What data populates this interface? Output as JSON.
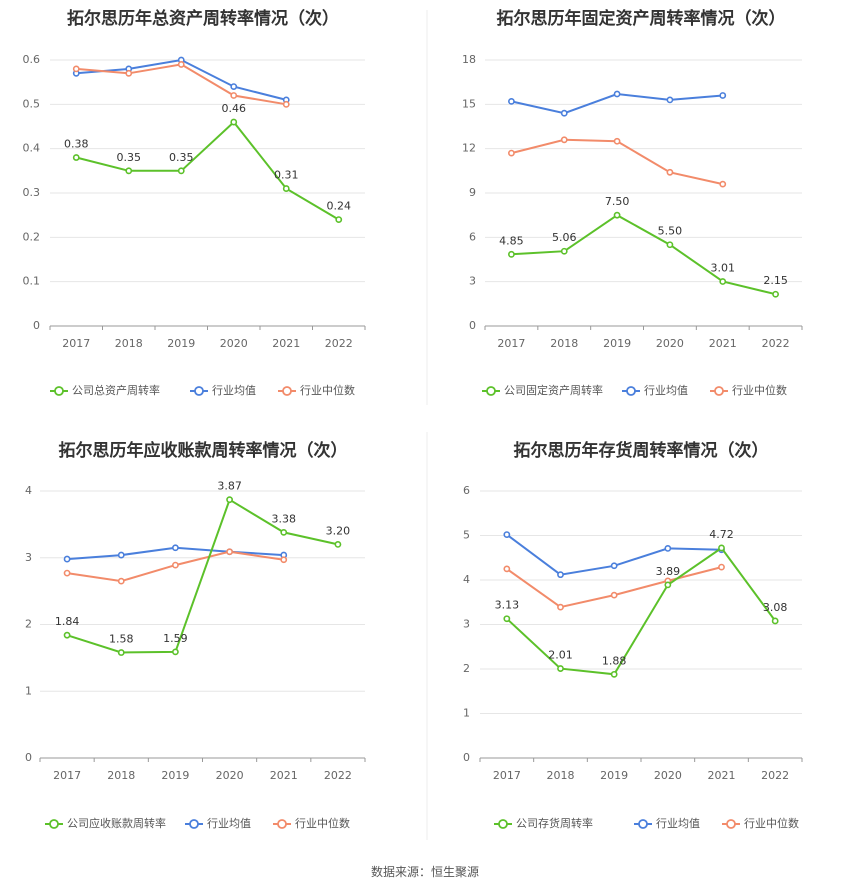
{
  "source_text": "数据来源：恒生聚源",
  "colors": {
    "company": "#5cc12a",
    "average": "#4a7fdc",
    "median": "#f28b6a"
  },
  "chart_data": [
    {
      "type": "line",
      "title": "拓尔思历年总资产周转率情况（次）",
      "categories": [
        "2017",
        "2018",
        "2019",
        "2020",
        "2021",
        "2022"
      ],
      "ylim": [
        0,
        0.6
      ],
      "yticks": [
        "0",
        "0.1",
        "0.2",
        "0.3",
        "0.4",
        "0.5",
        "0.6"
      ],
      "series": [
        {
          "name": "公司总资产周转率",
          "role": "company",
          "values": [
            0.38,
            0.35,
            0.35,
            0.46,
            0.31,
            0.24
          ],
          "labels": [
            "0.38",
            "0.35",
            "0.35",
            "0.46",
            "0.31",
            "0.24"
          ]
        },
        {
          "name": "行业均值",
          "role": "average",
          "values": [
            0.57,
            0.58,
            0.6,
            0.54,
            0.51,
            null
          ]
        },
        {
          "name": "行业中位数",
          "role": "median",
          "values": [
            0.58,
            0.57,
            0.59,
            0.52,
            0.5,
            null
          ]
        }
      ]
    },
    {
      "type": "line",
      "title": "拓尔思历年固定资产周转率情况（次）",
      "categories": [
        "2017",
        "2018",
        "2019",
        "2020",
        "2021",
        "2022"
      ],
      "ylim": [
        0,
        18
      ],
      "yticks": [
        "0",
        "3",
        "6",
        "9",
        "12",
        "15",
        "18"
      ],
      "series": [
        {
          "name": "公司固定资产周转率",
          "role": "company",
          "values": [
            4.85,
            5.06,
            7.5,
            5.5,
            3.01,
            2.15
          ],
          "labels": [
            "4.85",
            "5.06",
            "7.50",
            "5.50",
            "3.01",
            "2.15"
          ]
        },
        {
          "name": "行业均值",
          "role": "average",
          "values": [
            15.2,
            14.4,
            15.7,
            15.3,
            15.6,
            null
          ]
        },
        {
          "name": "行业中位数",
          "role": "median",
          "values": [
            11.7,
            12.6,
            12.5,
            10.4,
            9.6,
            null
          ]
        }
      ]
    },
    {
      "type": "line",
      "title": "拓尔思历年应收账款周转率情况（次）",
      "categories": [
        "2017",
        "2018",
        "2019",
        "2020",
        "2021",
        "2022"
      ],
      "ylim": [
        0,
        4
      ],
      "yticks": [
        "0",
        "1",
        "2",
        "3",
        "4"
      ],
      "series": [
        {
          "name": "公司应收账款周转率",
          "role": "company",
          "values": [
            1.84,
            1.58,
            1.59,
            3.87,
            3.38,
            3.2
          ],
          "labels": [
            "1.84",
            "1.58",
            "1.59",
            "3.87",
            "3.38",
            "3.20"
          ]
        },
        {
          "name": "行业均值",
          "role": "average",
          "values": [
            2.98,
            3.04,
            3.15,
            3.09,
            3.04,
            null
          ]
        },
        {
          "name": "行业中位数",
          "role": "median",
          "values": [
            2.77,
            2.65,
            2.89,
            3.09,
            2.97,
            null
          ]
        }
      ]
    },
    {
      "type": "line",
      "title": "拓尔思历年存货周转率情况（次）",
      "categories": [
        "2017",
        "2018",
        "2019",
        "2020",
        "2021",
        "2022"
      ],
      "ylim": [
        0,
        6
      ],
      "yticks": [
        "0",
        "1",
        "2",
        "3",
        "4",
        "5",
        "6"
      ],
      "series": [
        {
          "name": "公司存货周转率",
          "role": "company",
          "values": [
            3.13,
            2.01,
            1.88,
            3.89,
            4.72,
            3.08
          ],
          "labels": [
            "3.13",
            "2.01",
            "1.88",
            "3.89",
            "4.72",
            "3.08"
          ]
        },
        {
          "name": "行业均值",
          "role": "average",
          "values": [
            5.02,
            4.12,
            4.32,
            4.71,
            4.68,
            null
          ]
        },
        {
          "name": "行业中位数",
          "role": "median",
          "values": [
            4.25,
            3.39,
            3.66,
            3.98,
            4.29,
            null
          ]
        }
      ]
    }
  ]
}
